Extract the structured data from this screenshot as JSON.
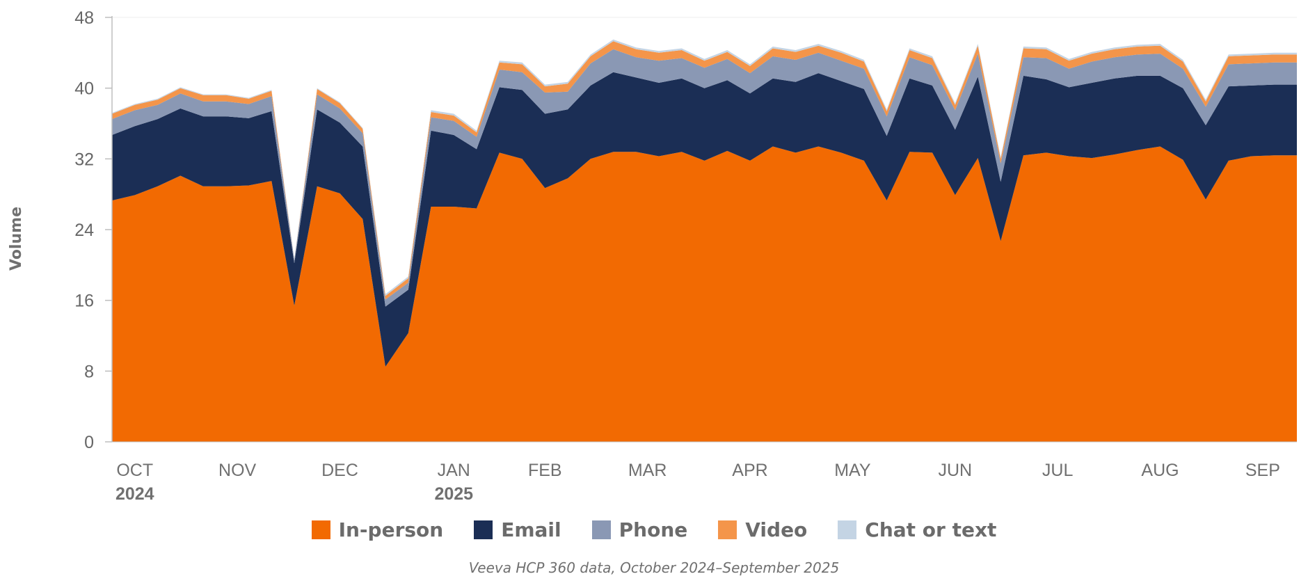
{
  "chart_data": {
    "type": "area",
    "stacked": true,
    "ylabel": "Volume",
    "ylim": [
      0,
      48
    ],
    "yticks": [
      0,
      8,
      16,
      24,
      32,
      40,
      48
    ],
    "grid": false,
    "legend_position": "bottom",
    "month_labels": [
      {
        "label": "OCT",
        "year": "2024",
        "x": 1
      },
      {
        "label": "NOV",
        "year": "",
        "x": 5.5
      },
      {
        "label": "DEC",
        "year": "",
        "x": 10
      },
      {
        "label": "JAN",
        "year": "2025",
        "x": 15
      },
      {
        "label": "FEB",
        "year": "",
        "x": 19
      },
      {
        "label": "MAR",
        "year": "",
        "x": 23.5
      },
      {
        "label": "APR",
        "year": "",
        "x": 28
      },
      {
        "label": "MAY",
        "year": "",
        "x": 32.5
      },
      {
        "label": "JUN",
        "year": "",
        "x": 37
      },
      {
        "label": "JUL",
        "year": "",
        "x": 41.5
      },
      {
        "label": "AUG",
        "year": "",
        "x": 46
      },
      {
        "label": "SEP",
        "year": "",
        "x": 50.5
      }
    ],
    "x": [
      0,
      1,
      2,
      3,
      4,
      5,
      6,
      7,
      8,
      9,
      10,
      11,
      12,
      13,
      14,
      15,
      16,
      17,
      18,
      19,
      20,
      21,
      22,
      23,
      24,
      25,
      26,
      27,
      28,
      29,
      30,
      31,
      32,
      33,
      34,
      35,
      36,
      37,
      38,
      39,
      40,
      41,
      42,
      43,
      44,
      45,
      46,
      47,
      48,
      49,
      50,
      51,
      52
    ],
    "series": [
      {
        "name": "In-person",
        "color": "#f26a02",
        "values": [
          27.3,
          27.9,
          28.9,
          30.1,
          28.9,
          28.9,
          29.0,
          29.5,
          15.4,
          28.9,
          28.1,
          25.2,
          8.5,
          12.3,
          26.6,
          26.6,
          26.4,
          32.7,
          32.0,
          28.7,
          29.8,
          32.0,
          32.8,
          32.8,
          32.3,
          32.8,
          31.8,
          32.9,
          31.8,
          33.4,
          32.7,
          33.4,
          32.7,
          31.8,
          27.3,
          32.8,
          32.7,
          27.9,
          32.1,
          22.7,
          32.4,
          32.7,
          32.3,
          32.1,
          32.5,
          33.0,
          33.4,
          31.9,
          27.4,
          31.8,
          32.3,
          32.4,
          32.4
        ]
      },
      {
        "name": "Email",
        "color": "#1b2e55",
        "values": [
          7.4,
          7.8,
          7.6,
          7.6,
          7.9,
          7.9,
          7.6,
          7.9,
          4.8,
          8.7,
          8.0,
          8.2,
          6.8,
          4.9,
          8.6,
          8.1,
          6.7,
          7.4,
          7.8,
          8.4,
          7.8,
          8.3,
          9.0,
          8.4,
          8.3,
          8.3,
          8.2,
          8.0,
          7.6,
          7.7,
          8.0,
          8.3,
          8.1,
          8.1,
          7.3,
          8.3,
          7.6,
          7.4,
          9.2,
          6.7,
          9.0,
          8.3,
          7.8,
          8.5,
          8.6,
          8.4,
          8.0,
          8.1,
          8.4,
          8.4,
          8.0,
          8.0,
          8.0
        ]
      },
      {
        "name": "Phone",
        "color": "#8a98b4",
        "values": [
          1.8,
          1.8,
          1.6,
          1.7,
          1.7,
          1.7,
          1.6,
          1.7,
          0.4,
          1.7,
          1.6,
          1.5,
          0.8,
          0.8,
          1.5,
          1.6,
          1.4,
          2.0,
          2.0,
          2.4,
          2.0,
          2.5,
          2.6,
          2.3,
          2.5,
          2.3,
          2.3,
          2.4,
          2.3,
          2.5,
          2.5,
          2.3,
          2.3,
          2.3,
          2.2,
          2.4,
          2.3,
          2.2,
          2.6,
          2.1,
          2.1,
          2.4,
          2.1,
          2.4,
          2.4,
          2.4,
          2.5,
          2.2,
          2.1,
          2.5,
          2.5,
          2.5,
          2.5
        ]
      },
      {
        "name": "Video",
        "color": "#f4954a",
        "values": [
          0.6,
          0.6,
          0.6,
          0.6,
          0.7,
          0.7,
          0.6,
          0.6,
          0.0,
          0.6,
          0.6,
          0.5,
          0.4,
          0.5,
          0.6,
          0.6,
          0.5,
          0.8,
          0.9,
          0.7,
          0.9,
          0.8,
          0.9,
          0.9,
          0.9,
          0.9,
          0.8,
          0.8,
          0.8,
          0.9,
          0.9,
          0.8,
          0.9,
          0.8,
          0.6,
          0.8,
          0.8,
          0.6,
          0.9,
          0.5,
          1.0,
          1.0,
          0.9,
          0.9,
          0.9,
          0.9,
          0.9,
          0.8,
          0.6,
          0.9,
          0.9,
          0.9,
          0.9
        ]
      },
      {
        "name": "Chat or text",
        "color": "#c4d4e4",
        "values": [
          0.1,
          0.1,
          0.1,
          0.1,
          0.1,
          0.1,
          0.1,
          0.1,
          0.0,
          0.1,
          0.1,
          0.1,
          0.2,
          0.2,
          0.2,
          0.2,
          0.2,
          0.2,
          0.2,
          0.2,
          0.2,
          0.2,
          0.2,
          0.2,
          0.2,
          0.2,
          0.2,
          0.2,
          0.2,
          0.2,
          0.2,
          0.2,
          0.2,
          0.2,
          0.2,
          0.2,
          0.2,
          0.2,
          0.2,
          0.2,
          0.2,
          0.2,
          0.2,
          0.2,
          0.2,
          0.2,
          0.2,
          0.2,
          0.2,
          0.2,
          0.2,
          0.2,
          0.2
        ]
      }
    ]
  },
  "source_note": "Veeva HCP 360 data, October 2024–September 2025"
}
